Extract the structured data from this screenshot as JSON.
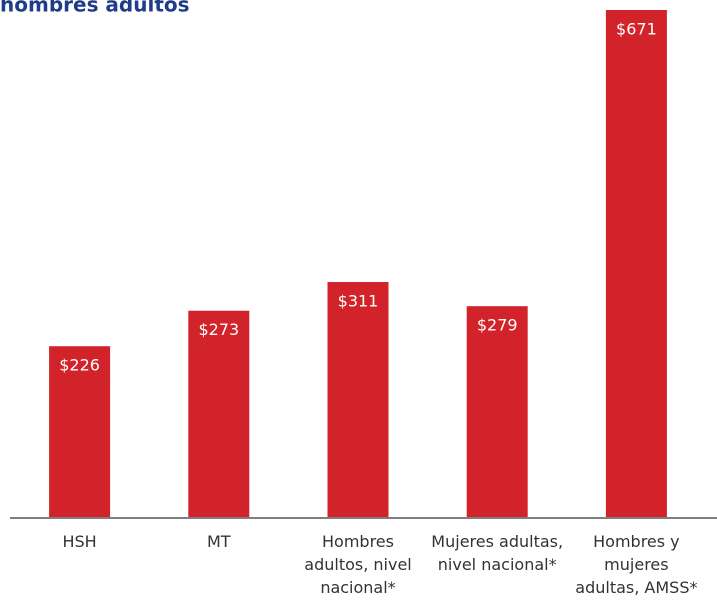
{
  "chart_data": {
    "type": "bar",
    "title": "hombres adultos",
    "categories": [
      "HSH",
      "MT",
      "Hombres adultos, nivel nacional*",
      "Mujeres adultas, nivel nacional*",
      "Hombres y mujeres adultas, AMSS*"
    ],
    "values": [
      226,
      273,
      311,
      279,
      671
    ],
    "value_labels": [
      "$226",
      "$273",
      "$311",
      "$279",
      "$671"
    ],
    "color": "#d2232a"
  }
}
